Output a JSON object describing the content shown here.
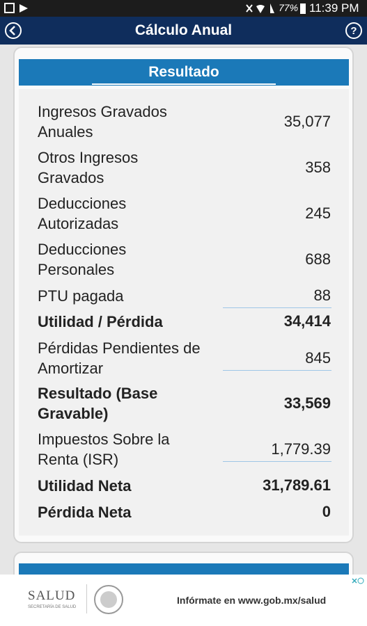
{
  "status_bar": {
    "battery": "77%",
    "time": "11:39 PM"
  },
  "app_bar": {
    "title": "Cálculo Anual"
  },
  "card": {
    "header": "Resultado",
    "rows": [
      {
        "lines": [
          "Ingresos Gravados",
          "Anuales"
        ],
        "value": "35,077",
        "bold": false,
        "input": false
      },
      {
        "lines": [
          "Otros Ingresos",
          "Gravados"
        ],
        "value": "358",
        "bold": false,
        "input": false
      },
      {
        "lines": [
          "Deducciones",
          "Autorizadas"
        ],
        "value": "245",
        "bold": false,
        "input": false
      },
      {
        "lines": [
          "Deducciones",
          "Personales"
        ],
        "value": "688",
        "bold": false,
        "input": false
      },
      {
        "lines": [
          "PTU pagada"
        ],
        "value": "88",
        "bold": false,
        "input": true
      },
      {
        "lines": [
          "Utilidad / Pérdida"
        ],
        "value": "34,414",
        "bold": true,
        "input": false
      },
      {
        "lines": [
          "Pérdidas Pendientes de",
          "Amortizar"
        ],
        "value": "845",
        "bold": false,
        "input": true
      },
      {
        "lines": [
          "Resultado (Base",
          "Gravable)"
        ],
        "value": "33,569",
        "bold": true,
        "input": false
      },
      {
        "lines": [
          "Impuestos Sobre la",
          "Renta (ISR)"
        ],
        "value": "1,779.39",
        "bold": false,
        "input": true
      },
      {
        "lines": [
          "Utilidad Neta"
        ],
        "value": "31,789.61",
        "bold": true,
        "input": false
      },
      {
        "lines": [
          "Pérdida Neta"
        ],
        "value": "0",
        "bold": true,
        "input": false
      }
    ]
  },
  "ad": {
    "brand": "SALUD",
    "brand_sub": "SECRETARÍA DE SALUD",
    "text": "Infórmate en www.gob.mx/salud"
  }
}
